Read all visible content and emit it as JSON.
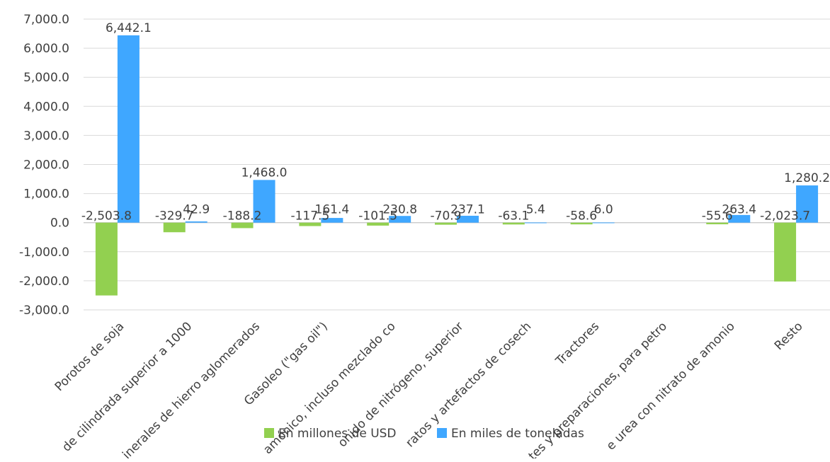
{
  "chart_data": {
    "type": "bar",
    "categories": [
      "Porotos de soja",
      "de cilindrada superior a 1000",
      "inerales de hierro aglomerados",
      "Gasoleo (\"gas oil\")",
      "amónico, incluso mezclado co",
      "onido de nitrógeno, superior",
      "ratos y artefactos de cosech",
      "Tractores",
      "tes y preparaciones, para petro",
      "e urea con nitrato de amonio",
      "Resto"
    ],
    "series": [
      {
        "name": "En millones  de USD",
        "color": "#92d050",
        "values": [
          -2503.8,
          -329.7,
          -188.2,
          -117.5,
          -101.5,
          -70.9,
          -63.1,
          -58.6,
          null,
          -55.6,
          -2023.7
        ],
        "labels": [
          "-2,503.8",
          "-329.7",
          "-188.2",
          "-117.5",
          "-101.5",
          "-70.9",
          "-63.1",
          "-58.6",
          "",
          "-55.6",
          "-2,023.7"
        ]
      },
      {
        "name": "En miles de toneladas",
        "color": "#3fa7ff",
        "values": [
          6442.1,
          42.9,
          1468.0,
          161.4,
          230.8,
          237.1,
          5.4,
          6.0,
          null,
          263.4,
          1280.2
        ],
        "labels": [
          "6,442.1",
          "42.9",
          "1,468.0",
          "161.4",
          "230.8",
          "237.1",
          "5.4",
          "6.0",
          "",
          "263.4",
          "1,280.2"
        ]
      }
    ],
    "yticks": [
      "7,000.0",
      "6,000.0",
      "5,000.0",
      "4,000.0",
      "3,000.0",
      "2,000.0",
      "1,000.0",
      "0.0",
      "-1,000.0",
      "-2,000.0",
      "-3,000.0"
    ],
    "ylim": [
      -3000,
      7000
    ],
    "grid": true,
    "legend_position": "bottom",
    "title": "",
    "xlabel": "",
    "ylabel": ""
  }
}
